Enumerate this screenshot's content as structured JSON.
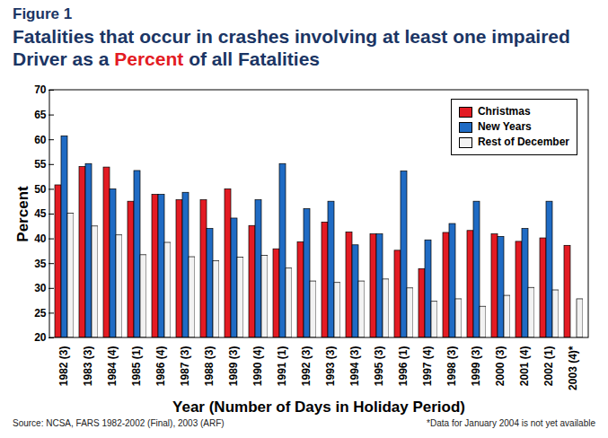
{
  "chart_data": {
    "type": "bar",
    "figure": "Figure 1",
    "title": "Fatalities that occur in crashes involving at least one impaired Driver as a Percent of all Fatalities",
    "x_label": "Year (Number of Days in Holiday Period)",
    "y_label": "Percent",
    "source": "Source: NCSA, FARS 1982-2002 (Final), 2003 (ARF)",
    "footnote": "*Data for January 2004 is not yet available",
    "categories": [
      "1982 (3)",
      "1983 (3)",
      "1984 (4)",
      "1985 (1)",
      "1986 (4)",
      "1987 (3)",
      "1988 (3)",
      "1989 (3)",
      "1990 (4)",
      "1991 (1)",
      "1992 (3)",
      "1993 (3)",
      "1994 (3)",
      "1995 (3)",
      "1996 (1)",
      "1997 (4)",
      "1998 (3)",
      "1999 (3)",
      "2000 (3)",
      "2001 (4)",
      "2002 (1)",
      "2003 (4)*"
    ],
    "series": [
      {
        "name": "Christmas",
        "color": "#e31b23",
        "values": [
          50.8,
          54.5,
          54.4,
          47.5,
          48.9,
          47.8,
          47.8,
          50.0,
          42.6,
          37.9,
          39.3,
          43.3,
          41.3,
          40.9,
          37.6,
          33.9,
          41.2,
          41.6,
          40.9,
          39.4,
          40.1,
          38.6
        ]
      },
      {
        "name": "New Years",
        "color": "#1f6bc4",
        "values": [
          60.7,
          55.1,
          50.0,
          53.7,
          48.9,
          49.3,
          42.0,
          44.1,
          47.8,
          55.1,
          46.0,
          47.5,
          38.7,
          40.9,
          53.6,
          39.7,
          43.0,
          47.5,
          40.4,
          42.0,
          47.5,
          null
        ]
      },
      {
        "name": "Rest of December",
        "color": "#f2f2f2",
        "values": [
          45.1,
          42.5,
          40.7,
          36.7,
          39.2,
          36.3,
          35.5,
          36.2,
          36.6,
          34.0,
          31.4,
          31.1,
          31.4,
          31.8,
          30.0,
          27.3,
          27.8,
          26.3,
          28.5,
          30.1,
          29.6,
          27.8
        ]
      }
    ],
    "ylim": [
      20,
      70
    ],
    "yticks": [
      20,
      25,
      30,
      35,
      40,
      45,
      50,
      55,
      60,
      65,
      70
    ],
    "legend": "top-right",
    "grid": false
  }
}
